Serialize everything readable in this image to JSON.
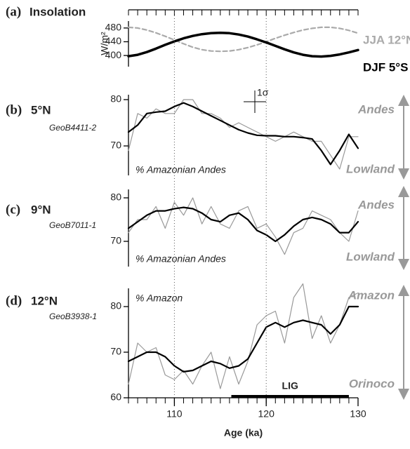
{
  "chart_data": [
    {
      "type": "line",
      "panel_label": "(a)",
      "title": "Insolation",
      "ylabel": "W/m²",
      "xlim": [
        105,
        130
      ],
      "xminorticks": [
        105,
        106,
        107,
        108,
        109,
        110,
        111,
        112,
        113,
        114,
        115,
        116,
        117,
        118,
        119,
        120,
        121,
        122,
        123,
        124,
        125,
        126,
        127,
        128,
        129,
        130
      ],
      "ylim": [
        390,
        490
      ],
      "yticks": [
        400,
        440,
        480
      ],
      "x": [
        105,
        106,
        107,
        108,
        109,
        110,
        111,
        112,
        113,
        114,
        115,
        116,
        117,
        118,
        119,
        120,
        121,
        122,
        123,
        124,
        125,
        126,
        127,
        128,
        129,
        130
      ],
      "series": [
        {
          "name": "JJA 12°N",
          "color": "#aaaaaa",
          "style": "dashed",
          "width": "medium",
          "values": [
            482,
            480,
            474,
            466,
            456,
            445,
            434,
            424,
            417,
            413,
            412,
            413,
            417,
            423,
            431,
            440,
            450,
            459,
            467,
            474,
            479,
            482,
            482,
            479,
            473,
            465
          ]
        },
        {
          "name": "DJF 5°S",
          "color": "#000000",
          "style": "solid",
          "width": "thick",
          "values": [
            398,
            402,
            410,
            420,
            431,
            441,
            450,
            457,
            462,
            465,
            466,
            465,
            461,
            455,
            447,
            438,
            428,
            418,
            409,
            402,
            398,
            397,
            399,
            403,
            409,
            416
          ]
        }
      ]
    },
    {
      "type": "line",
      "panel_label": "(b)",
      "title": "5°N",
      "subtitle": "GeoB4411-2",
      "annotation": "% Amazonian Andes",
      "error_label": "1σ",
      "right_labels": [
        "Andes",
        "Lowland"
      ],
      "xlim": [
        105,
        130
      ],
      "ylim": [
        64,
        81
      ],
      "yticks": [
        70,
        80
      ],
      "x": [
        105,
        106,
        107,
        108,
        109,
        110,
        111,
        112,
        113,
        114,
        115,
        116,
        117,
        118,
        119,
        120,
        121,
        122,
        123,
        124,
        125,
        126,
        127,
        128,
        129,
        130
      ],
      "series": [
        {
          "color": "#999999",
          "style": "solid",
          "width": "thin",
          "values": [
            69,
            77,
            76,
            78,
            77,
            77,
            80,
            80,
            77,
            77,
            76,
            74,
            75,
            74,
            73,
            72,
            71,
            72,
            73,
            72,
            71,
            71,
            68,
            65,
            72,
            72
          ]
        },
        {
          "color": "#000000",
          "style": "solid",
          "width": "medium",
          "values": [
            73,
            74.5,
            77,
            77.3,
            77.5,
            78.5,
            79.3,
            78.5,
            77.5,
            76.5,
            75.5,
            74.5,
            73.5,
            72.8,
            72.3,
            72.2,
            72.2,
            72,
            72,
            71.8,
            71.5,
            69,
            66,
            69,
            72.5,
            69.5
          ]
        }
      ]
    },
    {
      "type": "line",
      "panel_label": "(c)",
      "title": "9°N",
      "subtitle": "GeoB7011-1",
      "annotation": "% Amazonian Andes",
      "right_labels": [
        "Andes",
        "Lowland"
      ],
      "xlim": [
        105,
        130
      ],
      "ylim": [
        64,
        82
      ],
      "yticks": [
        70,
        80
      ],
      "x": [
        105,
        106,
        107,
        108,
        109,
        110,
        111,
        112,
        113,
        114,
        115,
        116,
        117,
        118,
        119,
        120,
        121,
        122,
        123,
        124,
        125,
        126,
        127,
        128,
        129,
        130
      ],
      "series": [
        {
          "color": "#999999",
          "style": "solid",
          "width": "thin",
          "values": [
            72,
            75,
            75,
            78,
            73,
            79,
            76,
            80,
            74,
            78,
            74,
            73,
            77,
            78,
            73,
            74,
            71,
            67,
            72,
            73,
            77,
            76,
            75,
            72,
            70,
            77
          ]
        },
        {
          "color": "#000000",
          "style": "solid",
          "width": "medium",
          "values": [
            73,
            74.5,
            76,
            77,
            77,
            77.5,
            77.8,
            77.5,
            76.5,
            75,
            74.5,
            76,
            76.5,
            75,
            72.5,
            71.5,
            70,
            71.5,
            73.5,
            75,
            75.5,
            75,
            74,
            72,
            72,
            74.5
          ]
        }
      ]
    },
    {
      "type": "line",
      "panel_label": "(d)",
      "title": "12°N",
      "subtitle": "GeoB3938-1",
      "annotation": "% Amazon",
      "right_labels": [
        "Amazon",
        "Orinoco"
      ],
      "xlim": [
        105,
        130
      ],
      "xticks": [
        110,
        120,
        130
      ],
      "xlabel": "Age (ka)",
      "vlines": [
        110,
        120
      ],
      "xminorticks": [
        105,
        106,
        107,
        108,
        109,
        110,
        111,
        112,
        113,
        114,
        115,
        116,
        117,
        118,
        119,
        120,
        121,
        122,
        123,
        124,
        125,
        126,
        127,
        128,
        129,
        130
      ],
      "ylim": [
        60,
        84
      ],
      "yticks": [
        60,
        70,
        80
      ],
      "period": {
        "label": "LIG",
        "start": 116.2,
        "end": 129
      },
      "x": [
        105,
        106,
        107,
        108,
        109,
        110,
        111,
        112,
        113,
        114,
        115,
        116,
        117,
        118,
        119,
        120,
        121,
        122,
        123,
        124,
        125,
        126,
        127,
        128,
        129,
        130
      ],
      "series": [
        {
          "color": "#999999",
          "style": "solid",
          "width": "thin",
          "values": [
            63,
            72,
            70,
            71,
            65,
            64,
            66,
            63,
            67,
            70,
            62,
            69,
            63,
            68,
            76,
            78,
            79,
            72,
            82,
            85,
            73,
            78,
            72,
            76,
            82,
            83
          ]
        },
        {
          "color": "#000000",
          "style": "solid",
          "width": "medium",
          "values": [
            68,
            69,
            70,
            70,
            69,
            67,
            65.7,
            66,
            67,
            68,
            67.5,
            66.5,
            67,
            68.5,
            72,
            75.5,
            76.5,
            75.5,
            76.5,
            77,
            76.5,
            76,
            74,
            76,
            80,
            80
          ]
        }
      ]
    }
  ]
}
